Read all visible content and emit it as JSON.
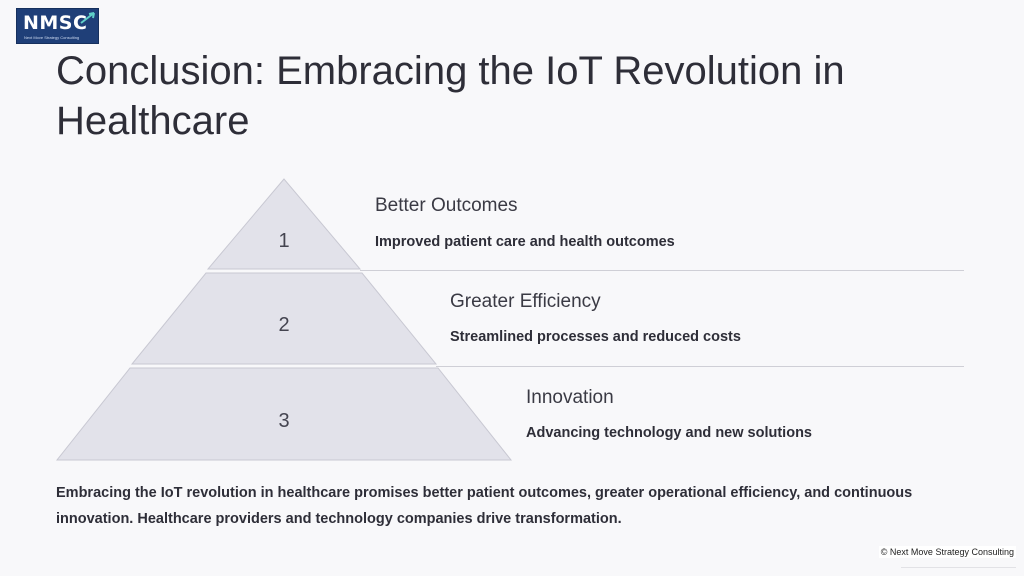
{
  "logo": {
    "text": "NMSC",
    "tagline": "Next Move Strategy Consulting"
  },
  "title": "Conclusion: Embracing the IoT Revolution in Healthcare",
  "pyramid": {
    "fill_color": "#e2e2ea",
    "levels": [
      {
        "number": "1",
        "heading": "Better Outcomes",
        "description": "Improved patient care and health outcomes"
      },
      {
        "number": "2",
        "heading": "Greater Efficiency",
        "description": "Streamlined processes and reduced costs"
      },
      {
        "number": "3",
        "heading": "Innovation",
        "description": "Advancing technology and new solutions"
      }
    ]
  },
  "summary": "Embracing the IoT revolution in healthcare promises better patient outcomes, greater operational efficiency, and continuous innovation. Healthcare providers and technology companies drive transformation.",
  "footer": "© Next Move Strategy Consulting"
}
